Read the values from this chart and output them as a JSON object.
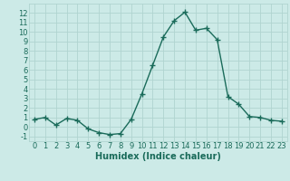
{
  "x": [
    0,
    1,
    2,
    3,
    4,
    5,
    6,
    7,
    8,
    9,
    10,
    11,
    12,
    13,
    14,
    15,
    16,
    17,
    18,
    19,
    20,
    21,
    22,
    23
  ],
  "y": [
    0.8,
    1.0,
    0.2,
    0.9,
    0.7,
    -0.2,
    -0.6,
    -0.8,
    -0.7,
    0.8,
    3.5,
    6.5,
    9.5,
    11.2,
    12.1,
    10.2,
    10.4,
    9.2,
    3.2,
    2.4,
    1.1,
    1.0,
    0.7,
    0.6
  ],
  "line_color": "#1a6b5a",
  "marker": "+",
  "marker_size": 4,
  "marker_lw": 1.0,
  "line_width": 1.0,
  "bg_color": "#cceae7",
  "grid_color": "#b0d4d0",
  "xlabel": "Humidex (Indice chaleur)",
  "xlim": [
    -0.5,
    23.5
  ],
  "ylim": [
    -1.5,
    13.0
  ],
  "yticks": [
    -1,
    0,
    1,
    2,
    3,
    4,
    5,
    6,
    7,
    8,
    9,
    10,
    11,
    12
  ],
  "xticks": [
    0,
    1,
    2,
    3,
    4,
    5,
    6,
    7,
    8,
    9,
    10,
    11,
    12,
    13,
    14,
    15,
    16,
    17,
    18,
    19,
    20,
    21,
    22,
    23
  ],
  "xlabel_fontsize": 7,
  "tick_fontsize": 6,
  "tick_color": "#1a6b5a",
  "spine_color": "#b0d4d0"
}
